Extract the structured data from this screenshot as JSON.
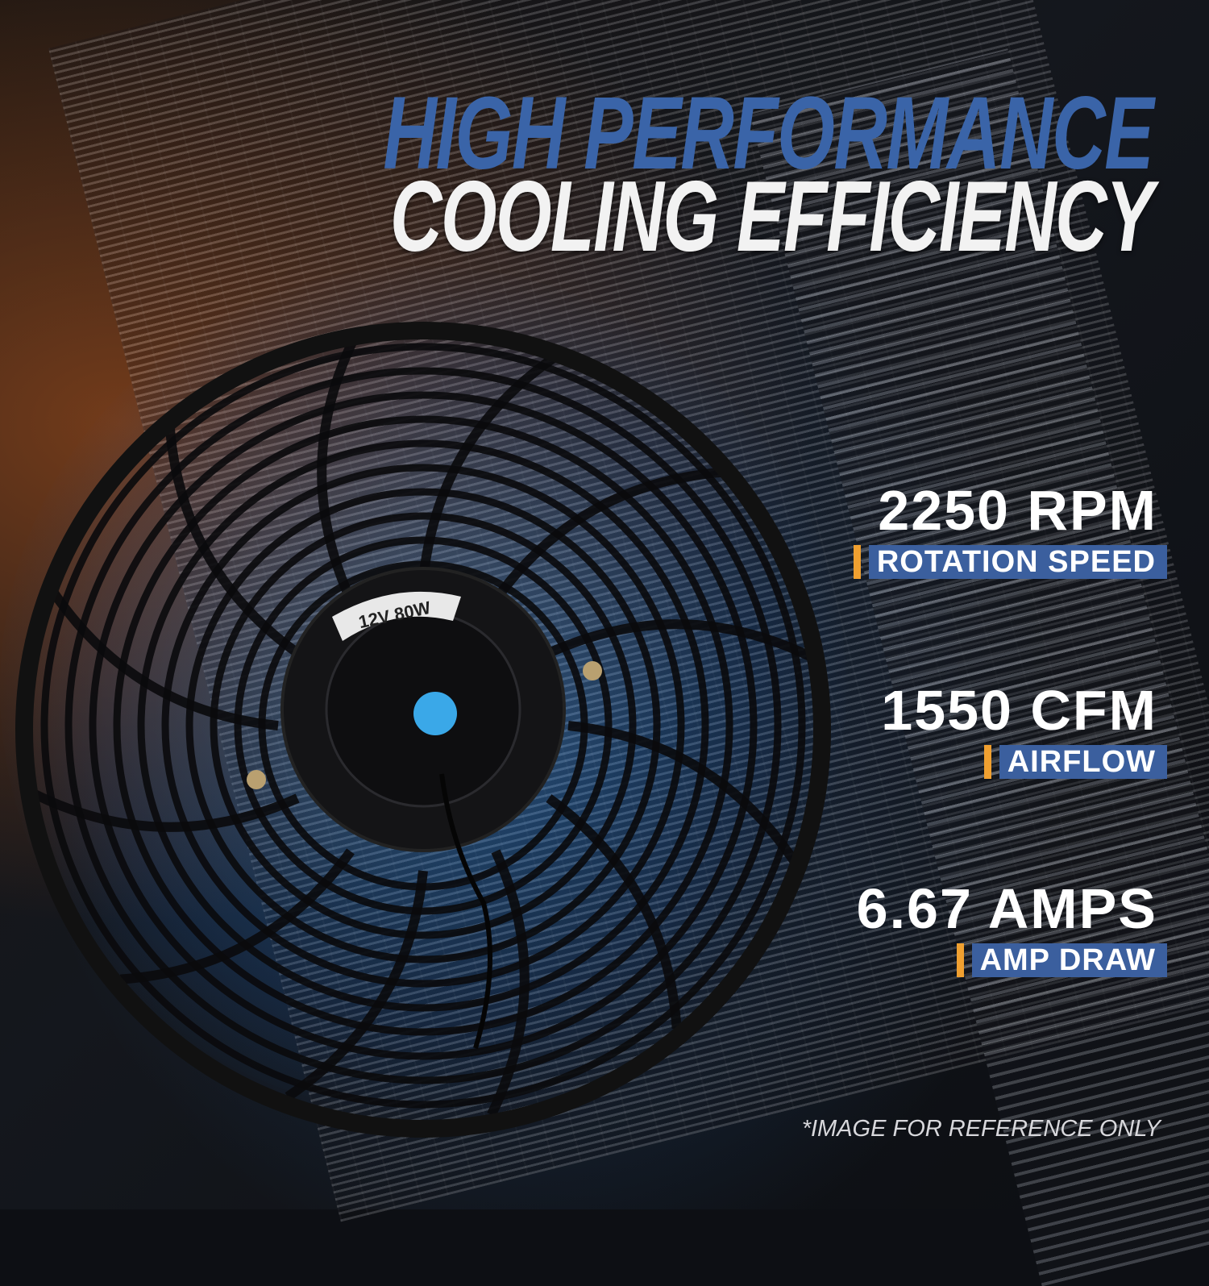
{
  "headline": {
    "line1": "HIGH PERFORMANCE",
    "line2": "COOLING EFFICIENCY"
  },
  "fan_label": "12V 80W",
  "specs": [
    {
      "value": "2250 RPM",
      "label": "ROTATION SPEED"
    },
    {
      "value": "1550 CFM",
      "label": "AIRFLOW"
    },
    {
      "value": "6.67 AMPS",
      "label": "AMP DRAW"
    }
  ],
  "disclaimer": "*IMAGE FOR REFERENCE ONLY",
  "colors": {
    "headline_blue": "#3a64a8",
    "label_bar": "#3b5f9e",
    "accent_orange": "#f0a030",
    "hub_button": "#3aa8e8"
  }
}
